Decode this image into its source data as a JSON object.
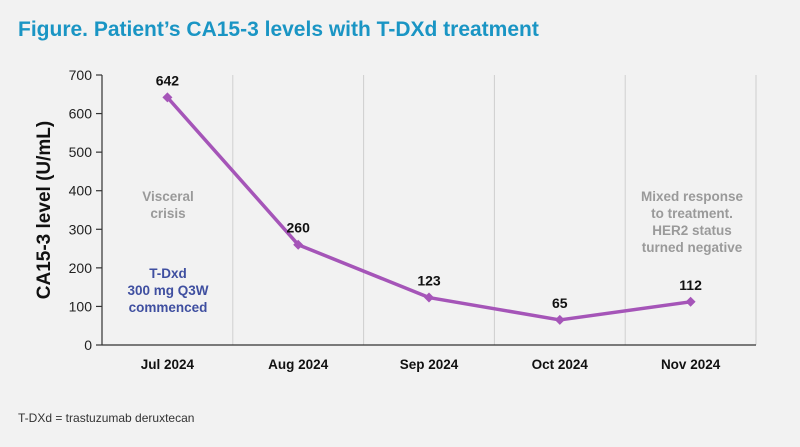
{
  "figure": {
    "title": "Figure. Patient’s CA15-3 levels with T-DXd treatment",
    "footnote": "T-DXd = trastuzumab deruxtecan"
  },
  "colors": {
    "title": "#1a95c4",
    "line": "#a555b8",
    "grey_note": "#9a9a9a",
    "blue_note": "#3f4fa0",
    "grid": "#cfcfcf",
    "background": "#f2f2f2"
  },
  "annotations": {
    "visceral": [
      "Visceral",
      "crisis"
    ],
    "tdxd": [
      "T-Dxd",
      "300 mg Q3W",
      "commenced"
    ],
    "mixed": [
      "Mixed response",
      "to treatment.",
      "HER2 status",
      "turned negative"
    ]
  },
  "chart_data": {
    "type": "line",
    "title": "Figure. Patient’s CA15-3 levels with T-DXd treatment",
    "xlabel": "",
    "ylabel": "CA15-3 level (U/mL)",
    "ylim": [
      0,
      700
    ],
    "yticks": [
      0,
      100,
      200,
      300,
      400,
      500,
      600,
      700
    ],
    "categories": [
      "Jul 2024",
      "Aug 2024",
      "Sep 2024",
      "Oct 2024",
      "Nov 2024"
    ],
    "series": [
      {
        "values": [
          642,
          260,
          123,
          65,
          112
        ],
        "data_labels": [
          "642",
          "260",
          "123",
          "65",
          "112"
        ]
      }
    ],
    "grid": "vertical separators between months",
    "legend": "none"
  }
}
